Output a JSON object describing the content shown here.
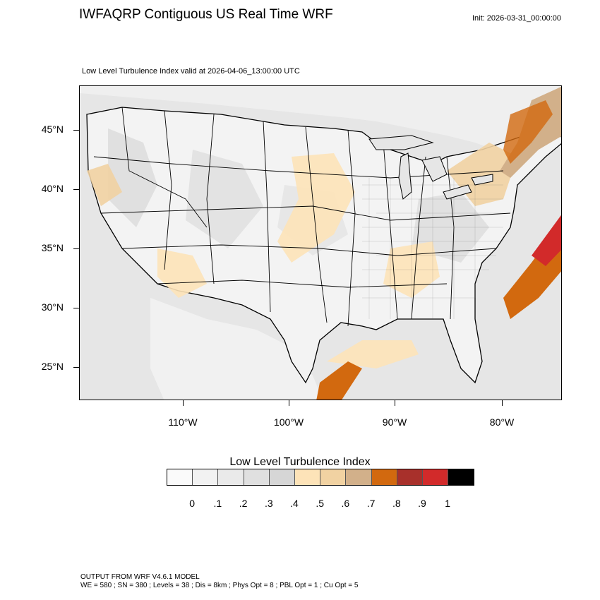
{
  "header": {
    "title": "IWFAQRP Contiguous US Real Time WRF",
    "init": "Init: 2026-03-31_00:00:00",
    "valid": "Low Level Turbulence Index valid at 2026-04-06_13:00:00 UTC"
  },
  "map": {
    "lat_labels": [
      "45°N",
      "40°N",
      "35°N",
      "30°N",
      "25°N"
    ],
    "lon_labels": [
      "110°W",
      "100°W",
      "90°W",
      "80°W"
    ]
  },
  "legend": {
    "title": "Low Level Turbulence Index",
    "tick_labels": [
      "0",
      ".1",
      ".2",
      ".3",
      ".4",
      ".5",
      ".6",
      ".7",
      ".8",
      ".9",
      "1"
    ],
    "colors": [
      "#fafafa",
      "#f2f2f2",
      "#eaeaea",
      "#e0e0e0",
      "#d6d6d6",
      "#fde3b8",
      "#f1d2a2",
      "#d2b08a",
      "#d2690f",
      "#a8302b",
      "#d22a2a",
      "#000000"
    ]
  },
  "footer": {
    "line1": "OUTPUT FROM WRF V4.6.1 MODEL",
    "line2": "WE = 580 ; SN = 380 ; Levels = 38 ; Dis = 8km ; Phys Opt = 8 ; PBL Opt = 1 ; Cu Opt = 5"
  }
}
